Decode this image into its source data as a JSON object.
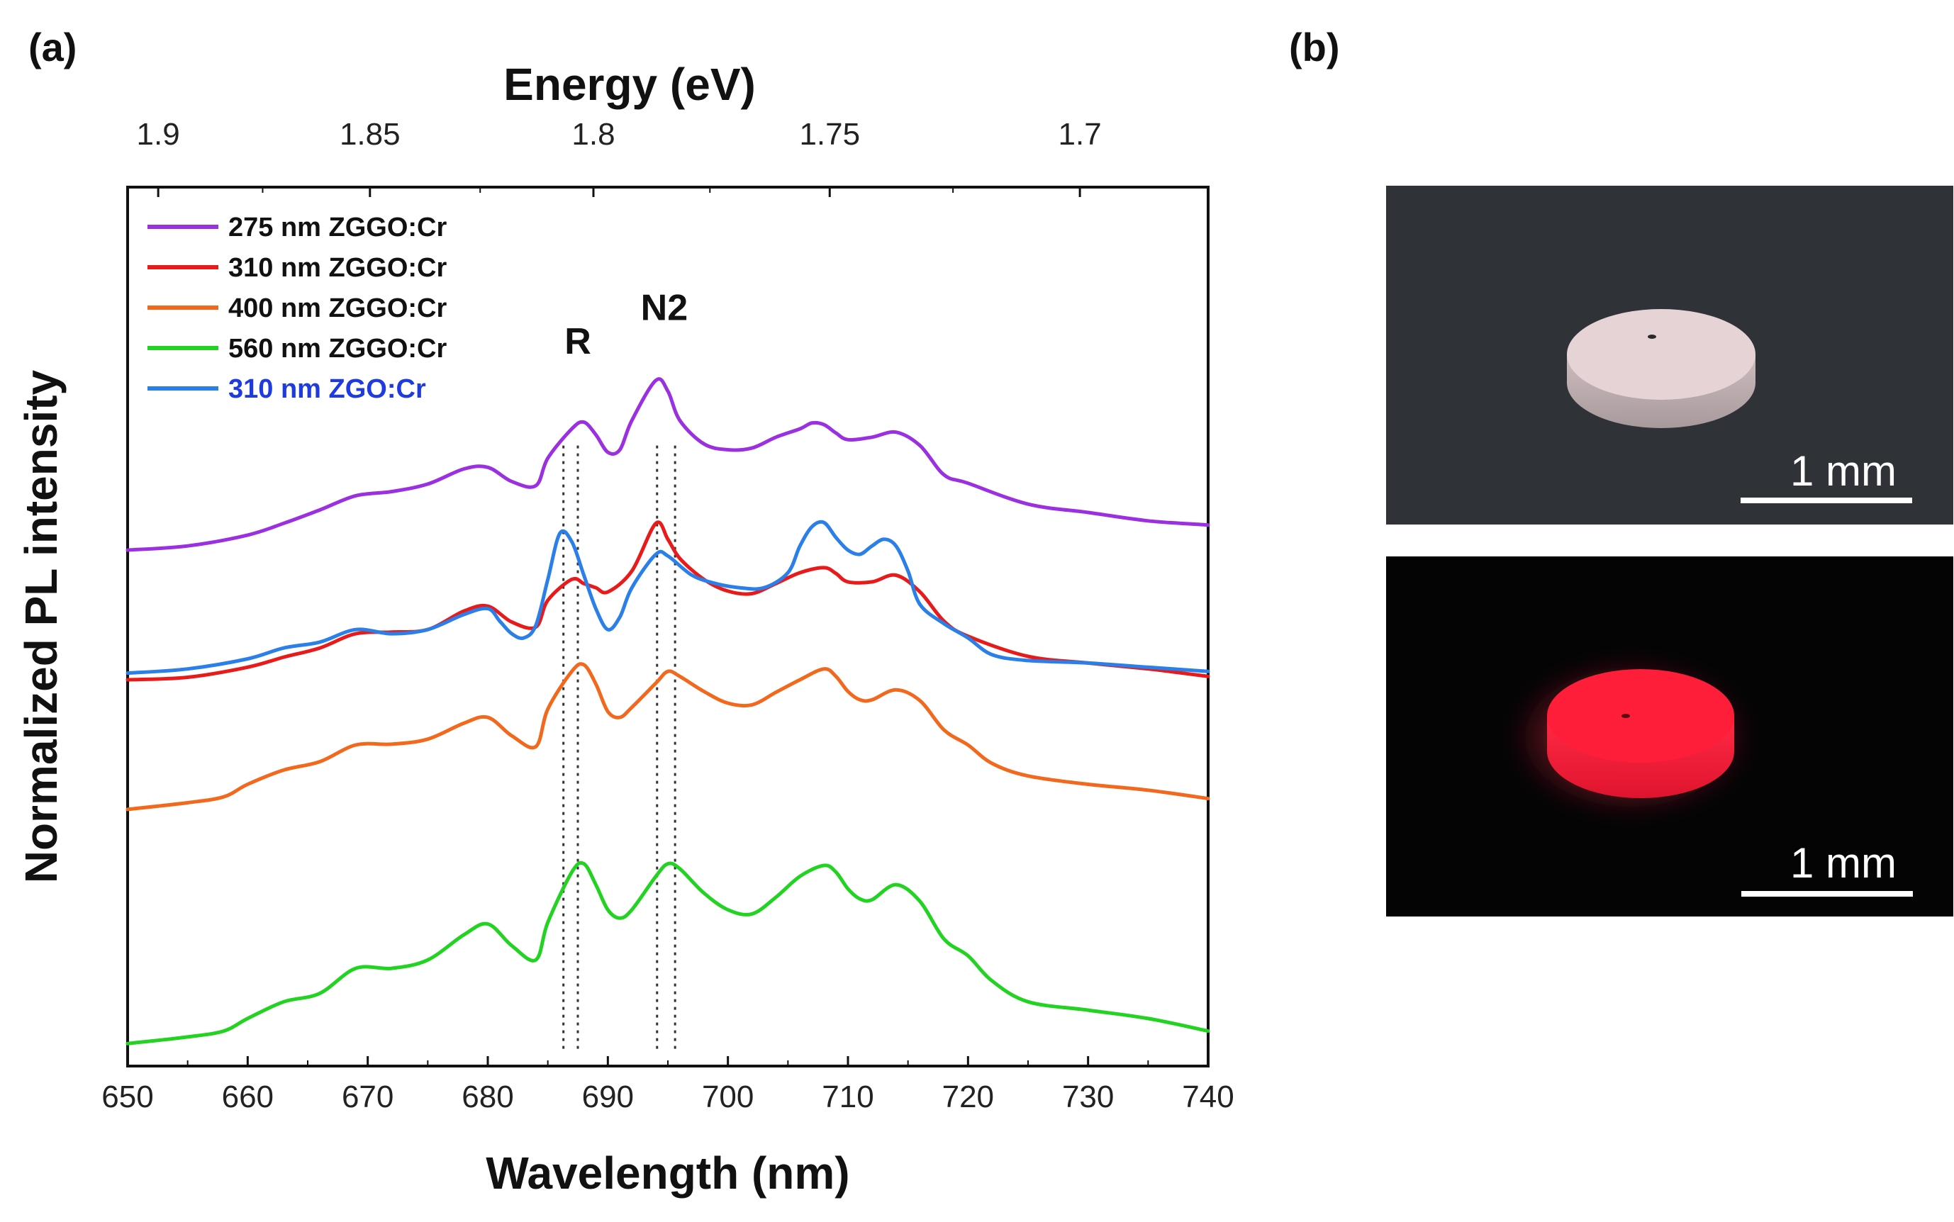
{
  "panels": {
    "a": "(a)",
    "b": "(b)"
  },
  "colors": {
    "purple": "#9B30E0",
    "red": "#E81A1A",
    "orange": "#F2691E",
    "green": "#22D322",
    "blue": "#2B7FE8",
    "legend_blue_text": "#1E3BE0",
    "photo1_bg": "#2A2D31",
    "photo2_bg": "#040405",
    "disk_white": "#E6D3D6",
    "disk_red": "#FF1E3A"
  },
  "chart_data": {
    "type": "line",
    "xlabel": "Wavelength (nm)",
    "ylabel": "Normalized PL intensity",
    "top_xlabel": "Energy (eV)",
    "xlim": [
      650,
      740
    ],
    "ylim": [
      0,
      100
    ],
    "xticks": [
      650,
      660,
      670,
      680,
      690,
      700,
      710,
      720,
      730,
      740
    ],
    "top_ticks": [
      {
        "label": "1.9",
        "ev": 1.9
      },
      {
        "label": "1.85",
        "ev": 1.85
      },
      {
        "label": "1.8",
        "ev": 1.8
      },
      {
        "label": "1.75",
        "ev": 1.75
      },
      {
        "label": "1.7",
        "ev": 1.7
      }
    ],
    "peak_labels": [
      {
        "text": "R",
        "x": 687.5,
        "y": 84
      },
      {
        "text": "N2",
        "x": 694.7,
        "y": 88
      }
    ],
    "dotted_lines": [
      686.3,
      687.5,
      694.1,
      695.6
    ],
    "series": [
      {
        "name": "275 nm ZGGO:Cr",
        "color_key": "purple",
        "x": [
          650,
          655,
          660,
          663,
          666,
          669,
          672,
          675,
          678,
          680,
          682,
          684,
          685,
          687,
          688,
          689,
          690,
          691,
          692,
          694,
          695,
          696,
          698,
          700,
          702,
          704,
          706,
          707,
          708,
          709,
          710,
          712,
          714,
          716,
          718,
          720,
          725,
          730,
          735,
          740
        ],
        "y": [
          60.5,
          61,
          62.3,
          63.7,
          65.3,
          67,
          67.5,
          68.4,
          70.2,
          70.4,
          68.7,
          68.2,
          71.5,
          75,
          75.8,
          74.3,
          72.2,
          72.5,
          76,
          80.8,
          79.5,
          76,
          73.2,
          72.5,
          72.7,
          74,
          75,
          75.7,
          75.5,
          74.5,
          73.7,
          74,
          74.6,
          73,
          69.5,
          68.5,
          66,
          65,
          64,
          63.5
        ]
      },
      {
        "name": "310 nm ZGGO:Cr",
        "color_key": "red",
        "x": [
          650,
          655,
          660,
          663,
          666,
          669,
          672,
          675,
          678,
          680,
          682,
          684,
          685,
          687,
          688,
          689,
          690,
          692,
          694,
          695,
          696,
          698,
          700,
          702,
          704,
          706,
          708,
          709,
          710,
          712,
          714,
          716,
          718,
          720,
          725,
          730,
          735,
          740
        ],
        "y": [
          45,
          45.3,
          46.5,
          47.7,
          48.8,
          50.5,
          50.7,
          51,
          53.2,
          53.8,
          51.9,
          51.3,
          54.5,
          57,
          56.5,
          56,
          55.5,
          58,
          63.7,
          61.8,
          59.5,
          57,
          55.6,
          55.3,
          56.5,
          57.8,
          58.4,
          57.7,
          56.7,
          56.7,
          57.5,
          55.5,
          52,
          50.2,
          47.8,
          47,
          46.3,
          45.4
        ]
      },
      {
        "name": "310 nm ZGO:Cr",
        "color_key": "blue",
        "x": [
          650,
          655,
          660,
          663,
          666,
          669,
          672,
          675,
          678,
          680,
          681,
          682,
          683,
          684,
          685,
          686,
          687,
          688,
          689,
          690,
          691,
          692,
          694,
          695,
          697,
          699,
          701,
          703,
          705,
          706,
          707,
          708,
          709,
          710,
          711,
          712,
          713,
          714,
          715,
          716,
          718,
          720,
          722,
          725,
          730,
          735,
          740
        ],
        "y": [
          45.8,
          46.3,
          47.5,
          48.8,
          49.5,
          51,
          50.5,
          51,
          52.8,
          53.5,
          52,
          50.5,
          50,
          51.5,
          57,
          62.5,
          61.5,
          57.5,
          53.5,
          51,
          52.5,
          56,
          60,
          59.8,
          57.5,
          56.5,
          56,
          56,
          57.8,
          61,
          63.3,
          63.8,
          62,
          60.5,
          60,
          61,
          61.8,
          61,
          58,
          54,
          51.7,
          50,
          48,
          47.3,
          47,
          46.5,
          46
        ]
      },
      {
        "name": "400 nm ZGGO:Cr",
        "color_key": "orange",
        "x": [
          650,
          655,
          658,
          660,
          663,
          666,
          669,
          672,
          675,
          678,
          680,
          682,
          684,
          685,
          687,
          688,
          689,
          690,
          691,
          692,
          694,
          695,
          696,
          698,
          700,
          702,
          704,
          706,
          708,
          709,
          710,
          711,
          712,
          714,
          716,
          718,
          720,
          722,
          725,
          730,
          735,
          740
        ],
        "y": [
          29.5,
          30.3,
          31,
          32.5,
          34.2,
          35.2,
          37.2,
          37.3,
          37.9,
          39.8,
          40.5,
          38.3,
          37,
          41.5,
          46,
          46.8,
          44.5,
          41.2,
          40.5,
          41.7,
          44.6,
          46,
          45.4,
          43.6,
          42.2,
          42,
          43.5,
          45,
          46.3,
          45.4,
          43.6,
          42.6,
          42.6,
          43.8,
          42.5,
          39,
          37.2,
          35,
          33.5,
          32.5,
          31.8,
          30.8
        ]
      },
      {
        "name": "560 nm ZGGO:Cr",
        "color_key": "green",
        "x": [
          650,
          655,
          658,
          660,
          663,
          666,
          669,
          672,
          675,
          678,
          680,
          682,
          684,
          685,
          687,
          688,
          689,
          690,
          691,
          692,
          694,
          695,
          696,
          698,
          700,
          702,
          704,
          706,
          708,
          709,
          710,
          711,
          712,
          714,
          716,
          718,
          720,
          722,
          725,
          730,
          735,
          740
        ],
        "y": [
          1.5,
          2.3,
          3,
          4.5,
          6.5,
          7.5,
          10.5,
          10.5,
          11.5,
          14.5,
          15.8,
          13.2,
          11.5,
          16,
          22,
          23,
          20.5,
          17.5,
          16.5,
          17.5,
          21.5,
          23,
          22.4,
          19.5,
          17.5,
          17,
          19,
          21.5,
          22.8,
          22,
          20,
          18.8,
          18.7,
          20.5,
          18.5,
          14,
          12,
          9,
          6.5,
          5.5,
          4.5,
          3
        ]
      }
    ],
    "legend": {
      "placement": "top-left",
      "items": [
        "275 nm ZGGO:Cr",
        "310 nm ZGGO:Cr",
        "400 nm ZGGO:Cr",
        "560 nm ZGGO:Cr",
        "310 nm ZGO:Cr"
      ],
      "color_keys": [
        "purple",
        "red",
        "orange",
        "green",
        "blue"
      ],
      "text_color_keys": [
        "dark",
        "dark",
        "dark",
        "dark",
        "legend_blue_text"
      ]
    },
    "grid": false
  },
  "photos": {
    "top": {
      "scale_label": "1 mm",
      "description_kind": "white disk on dark fabric"
    },
    "bottom": {
      "scale_label": "1 mm",
      "description_kind": "red glowing disk"
    }
  }
}
